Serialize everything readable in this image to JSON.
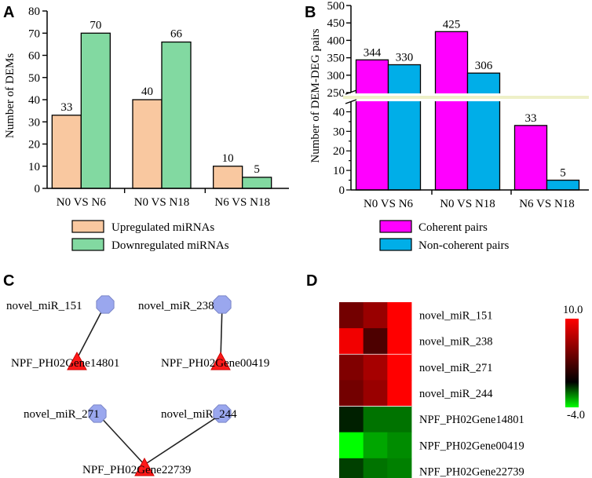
{
  "panels": {
    "a": "A",
    "b": "B",
    "c": "C",
    "d": "D"
  },
  "colors": {
    "up": "#f9c8a0",
    "down": "#82d9a1",
    "coherent": "#ff00ff",
    "noncoherent": "#00aee8",
    "node_mirna": "#9aa7ee",
    "node_gene": "#ff1a1a"
  },
  "chart_data": [
    {
      "type": "bar",
      "panel": "A",
      "ylabel": "Number of DEMs",
      "xlabel": "",
      "ylim": [
        0,
        80
      ],
      "yticks": [
        0,
        10,
        20,
        30,
        40,
        50,
        60,
        70,
        80
      ],
      "categories": [
        "N0 VS N6",
        "N0 VS N18",
        "N6 VS N18"
      ],
      "series": [
        {
          "name": "Upregulated miRNAs",
          "values": [
            33,
            40,
            10
          ]
        },
        {
          "name": "Downregulated miRNAs",
          "values": [
            70,
            66,
            5
          ]
        }
      ]
    },
    {
      "type": "bar",
      "panel": "B",
      "ylabel": "Number of DEM-DEG pairs",
      "xlabel": "",
      "axis_break": {
        "lower": [
          0,
          45
        ],
        "upper": [
          250,
          500
        ]
      },
      "yticks_lower": [
        0,
        5,
        10,
        15,
        20,
        25,
        30,
        35,
        40
      ],
      "yticks_upper": [
        250,
        300,
        350,
        400,
        450,
        500
      ],
      "categories": [
        "N0 VS N6",
        "N0 VS N18",
        "N6 VS N18"
      ],
      "series": [
        {
          "name": "Coherent pairs",
          "values": [
            344,
            425,
            33
          ]
        },
        {
          "name": "Non-coherent pairs",
          "values": [
            330,
            306,
            5
          ]
        }
      ]
    },
    {
      "type": "heatmap",
      "panel": "D",
      "rows": [
        "novel_miR_151",
        "novel_miR_238",
        "novel_miR_271",
        "novel_miR_244",
        "NPF_PH02Gene14801",
        "NPF_PH02Gene00419",
        "NPF_PH02Gene22739"
      ],
      "columns": 3,
      "values": [
        [
          4.5,
          6.0,
          10.0
        ],
        [
          9.5,
          3.0,
          10.0
        ],
        [
          5.0,
          6.5,
          10.0
        ],
        [
          4.5,
          6.0,
          10.0
        ],
        [
          -0.5,
          -1.8,
          -1.8
        ],
        [
          -4.0,
          -2.6,
          -2.2
        ],
        [
          -1.0,
          -1.8,
          -2.0
        ]
      ],
      "scale": {
        "max": 10.0,
        "min": -4.0,
        "max_label": "10.0",
        "min_label": "-4.0"
      }
    }
  ],
  "network": {
    "pairs": [
      {
        "mirnas": [
          "novel_miR_151"
        ],
        "gene": "NPF_PH02Gene14801"
      },
      {
        "mirnas": [
          "novel_miR_238"
        ],
        "gene": "NPF_PH02Gene00419"
      },
      {
        "mirnas": [
          "novel_miR_271",
          "novel_miR_244"
        ],
        "gene": "NPF_PH02Gene22739"
      }
    ]
  }
}
